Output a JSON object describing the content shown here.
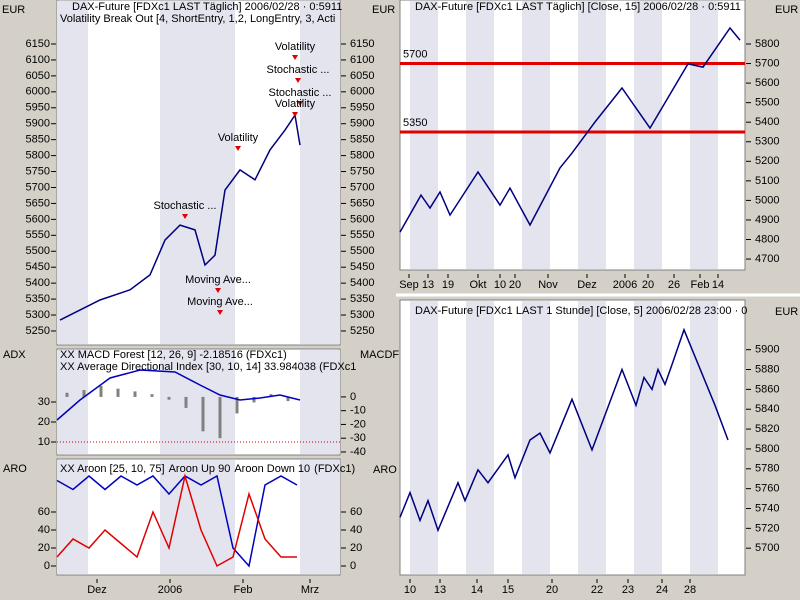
{
  "chart_data": [
    {
      "type": "line",
      "titles": [
        "DAX-Future [FDXc1 LAST Täglich] 2006/02/28 · 0:5911",
        "Volatility Break Out [4, ShortEntry, 1,2, LongEntry, 3, Acti"
      ],
      "unit_labels": [
        "EUR"
      ],
      "ylim": [
        5206,
        6288
      ],
      "yticks": [
        5250,
        5300,
        5350,
        5400,
        5450,
        5500,
        5550,
        5600,
        5650,
        5700,
        5750,
        5800,
        5850,
        5900,
        5950,
        6000,
        6050,
        6100,
        6150
      ],
      "xlim": [
        0,
        283
      ],
      "series": [
        {
          "color": "#000080",
          "x": [
            3,
            43,
            73,
            93,
            108,
            123,
            138,
            148,
            158,
            168,
            183,
            198,
            213,
            228,
            238,
            243
          ],
          "values": [
            5284,
            5347,
            5379,
            5426,
            5535,
            5582,
            5567,
            5457,
            5488,
            5692,
            5755,
            5724,
            5818,
            5880,
            5927,
            5833
          ]
        }
      ],
      "annotations": [
        "Volatility",
        "Stochastic ...",
        "Stochastic ...",
        "Volatility",
        "Volatility",
        "Stochastic ...",
        "Moving Ave...",
        "Moving Ave..."
      ]
    },
    {
      "type": "line",
      "titles": [
        "XX MACD Forest [12, 26, 9] -2.18516 (FDXc1)",
        "XX Average Directional Index [30, 10, 14] 33.984038 (FDXc1"
      ],
      "unit_labels": [
        "ADX",
        "MACDF"
      ],
      "ylim": [
        3.5,
        52.5
      ],
      "yticks": [
        10,
        20,
        30
      ],
      "y2lim": [
        -42.2,
        29
      ],
      "y2ticks": [
        0,
        -10,
        -20,
        -30,
        -40
      ],
      "xlim": [
        0,
        283
      ],
      "hlines": [
        10
      ],
      "hline_color": "#c00000",
      "hline_labels": false,
      "series": [
        {
          "type": "bar",
          "axis": "y2",
          "color": "#808080",
          "x": [
            10,
            27,
            44,
            61,
            78,
            95,
            112,
            129,
            146,
            163,
            180,
            197,
            214,
            231
          ],
          "values": [
            3,
            5,
            8,
            6,
            4,
            2,
            -2,
            -8,
            -25,
            -30,
            -12,
            -4,
            2,
            -3
          ]
        },
        {
          "color": "#0000c0",
          "x": [
            0,
            23,
            53,
            83,
            118,
            143,
            163,
            183,
            203,
            223,
            243
          ],
          "values": [
            21,
            31,
            42,
            46,
            45,
            38.5,
            33.5,
            31,
            32,
            33.5,
            31
          ]
        }
      ]
    },
    {
      "type": "line",
      "titles": [
        "XX Aroon [25, 10, 75]",
        "(FDXc1)"
      ],
      "unit_labels": [
        "ARO"
      ],
      "ylim": [
        -10,
        117.8
      ],
      "yticks": [
        0,
        20,
        40,
        60
      ],
      "y2lim": [
        -10,
        117.8
      ],
      "y2ticks": [
        0,
        20,
        40,
        60
      ],
      "xlim": [
        0,
        283
      ],
      "xticks": [
        {
          "value": 40,
          "label": "Dez"
        },
        {
          "value": 113,
          "label": "2006"
        },
        {
          "value": 186,
          "label": "Feb"
        },
        {
          "value": 253,
          "label": "Mrz"
        }
      ],
      "series": [
        {
          "name": "Aroon Up 90",
          "color": "#0000c0",
          "x": [
            0,
            16,
            32,
            48,
            64,
            80,
            96,
            112,
            128,
            144,
            160,
            176,
            192,
            208,
            224,
            240
          ],
          "values": [
            95,
            85,
            100,
            85,
            100,
            90,
            100,
            80,
            100,
            90,
            100,
            20,
            0,
            90,
            100,
            90
          ]
        },
        {
          "name": "Aroon Down 10",
          "color": "#e00000",
          "x": [
            0,
            16,
            32,
            48,
            64,
            80,
            96,
            112,
            128,
            144,
            160,
            176,
            192,
            208,
            224,
            240
          ],
          "values": [
            10,
            30,
            20,
            40,
            25,
            10,
            60,
            20,
            100,
            40,
            0,
            10,
            80,
            30,
            10,
            10
          ]
        }
      ]
    },
    {
      "type": "line",
      "titles": [
        "DAX-Future [FDXc1 LAST Täglich] [Close, 15] 2006/02/28 · 0:5911"
      ],
      "unit_labels": [
        "EUR",
        "EUR"
      ],
      "ylim": [
        4644,
        6025
      ],
      "yticks": [
        4700,
        4800,
        4900,
        5000,
        5100,
        5200,
        5300,
        5400,
        5500,
        5600,
        5700,
        5800
      ],
      "xlim": [
        0,
        345
      ],
      "xticks": [
        {
          "value": 9,
          "label": "Sep"
        },
        {
          "value": 28,
          "label": "13"
        },
        {
          "value": 48,
          "label": "19"
        },
        {
          "value": 78,
          "label": "Okt"
        },
        {
          "value": 100,
          "label": "10"
        },
        {
          "value": 115,
          "label": "20"
        },
        {
          "value": 148,
          "label": "Nov"
        },
        {
          "value": 187,
          "label": "Dez"
        },
        {
          "value": 225,
          "label": "2006"
        },
        {
          "value": 248,
          "label": "20"
        },
        {
          "value": 274,
          "label": "26"
        },
        {
          "value": 300,
          "label": "Feb"
        },
        {
          "value": 318,
          "label": "14"
        }
      ],
      "hlines": [
        5700,
        5350
      ],
      "hline_color": "#e00000",
      "hline_labels": true,
      "series": [
        {
          "color": "#000080",
          "x": [
            0,
            21,
            30,
            40,
            50,
            78,
            100,
            110,
            130,
            160,
            172,
            195,
            222,
            250,
            288,
            303,
            330,
            340
          ],
          "values": [
            4838,
            5027,
            4961,
            5043,
            4925,
            5145,
            4976,
            5063,
            4874,
            5166,
            5242,
            5401,
            5575,
            5370,
            5698,
            5682,
            5882,
            5820
          ]
        }
      ]
    },
    {
      "type": "line",
      "titles": [
        "DAX-Future [FDXc1 LAST 1 Stunde] [Close, 5] 2006/02/28 23:00 · 0"
      ],
      "unit_labels": [
        "EUR",
        "ARO"
      ],
      "ylim": [
        5673,
        5945
      ],
      "yticks": [
        5700,
        5720,
        5740,
        5760,
        5780,
        5800,
        5820,
        5840,
        5860,
        5880,
        5900
      ],
      "xlim": [
        0,
        345
      ],
      "xticks": [
        {
          "value": 10,
          "label": "10"
        },
        {
          "value": 40,
          "label": "13"
        },
        {
          "value": 77,
          "label": "14"
        },
        {
          "value": 108,
          "label": "15"
        },
        {
          "value": 152,
          "label": "20"
        },
        {
          "value": 197,
          "label": "22"
        },
        {
          "value": 228,
          "label": "23"
        },
        {
          "value": 262,
          "label": "24"
        },
        {
          "value": 290,
          "label": "28"
        }
      ],
      "series": [
        {
          "color": "#000080",
          "x": [
            0,
            10,
            20,
            28,
            38,
            58,
            65,
            78,
            88,
            108,
            115,
            130,
            140,
            150,
            172,
            192,
            222,
            236,
            244,
            252,
            258,
            265,
            272,
            284,
            315,
            328
          ],
          "values": [
            5731,
            5756,
            5728,
            5748,
            5718,
            5766,
            5748,
            5779,
            5766,
            5794,
            5771,
            5809,
            5816,
            5796,
            5850,
            5799,
            5880,
            5844,
            5872,
            5860,
            5880,
            5865,
            5885,
            5920,
            5844,
            5809
          ]
        }
      ]
    }
  ]
}
